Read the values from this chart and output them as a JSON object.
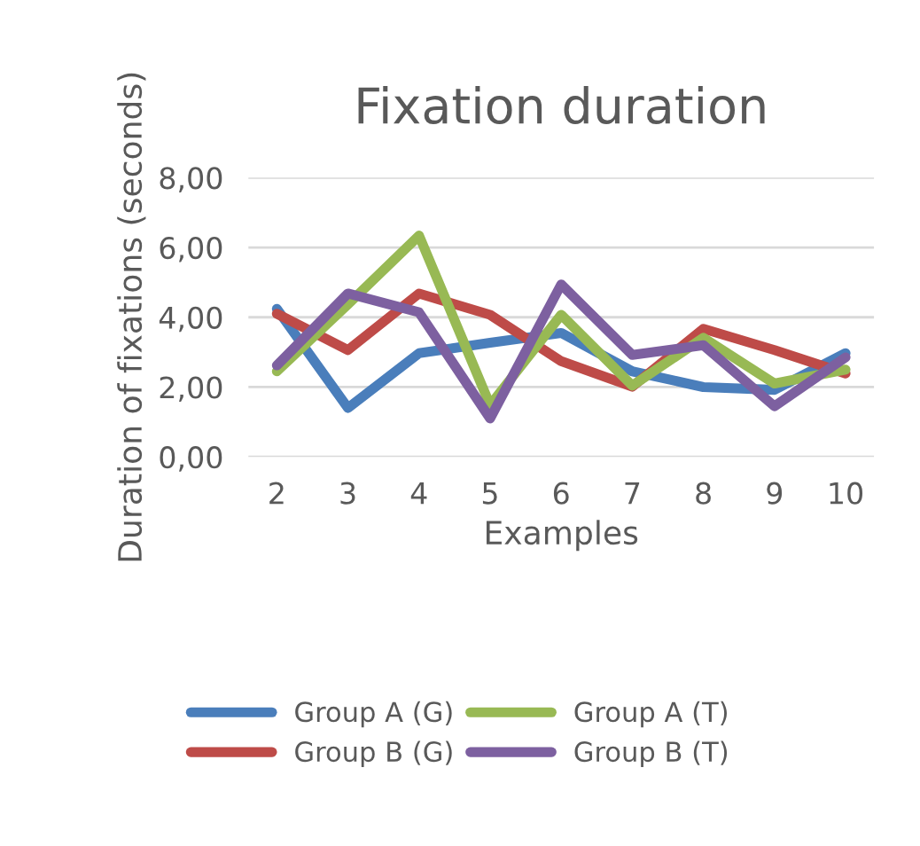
{
  "chart_data": {
    "type": "line",
    "title": "Fixation duration",
    "xlabel": "Examples",
    "ylabel": "Duration of fixations (seconds)",
    "categories": [
      "2",
      "3",
      "4",
      "5",
      "6",
      "7",
      "8",
      "9",
      "10"
    ],
    "series": [
      {
        "name": "Group A (G)",
        "color": "#4a7ebb",
        "values": [
          4.24,
          1.4,
          2.97,
          3.27,
          3.55,
          2.45,
          2.0,
          1.92,
          2.97
        ]
      },
      {
        "name": "Group B (G)",
        "color": "#be4b48",
        "values": [
          4.1,
          3.06,
          4.68,
          4.07,
          2.74,
          2.01,
          3.67,
          3.06,
          2.39
        ]
      },
      {
        "name": "Group A (T)",
        "color": "#98b954",
        "values": [
          2.45,
          4.37,
          6.34,
          1.48,
          4.07,
          2.04,
          3.41,
          2.1,
          2.5
        ]
      },
      {
        "name": "Group B (T)",
        "color": "#7d60a0",
        "values": [
          2.62,
          4.68,
          4.14,
          1.1,
          4.94,
          2.92,
          3.2,
          1.45,
          2.85
        ]
      }
    ],
    "ylim": [
      0,
      8
    ],
    "yticks": [
      {
        "value": 0,
        "label": "0,00"
      },
      {
        "value": 2,
        "label": "2,00"
      },
      {
        "value": 4,
        "label": "4,00"
      },
      {
        "value": 6,
        "label": "6,00"
      },
      {
        "value": 8,
        "label": "8,00"
      }
    ],
    "grid": "y",
    "legend": "bottom",
    "marker": "none",
    "line_style": "solid"
  }
}
